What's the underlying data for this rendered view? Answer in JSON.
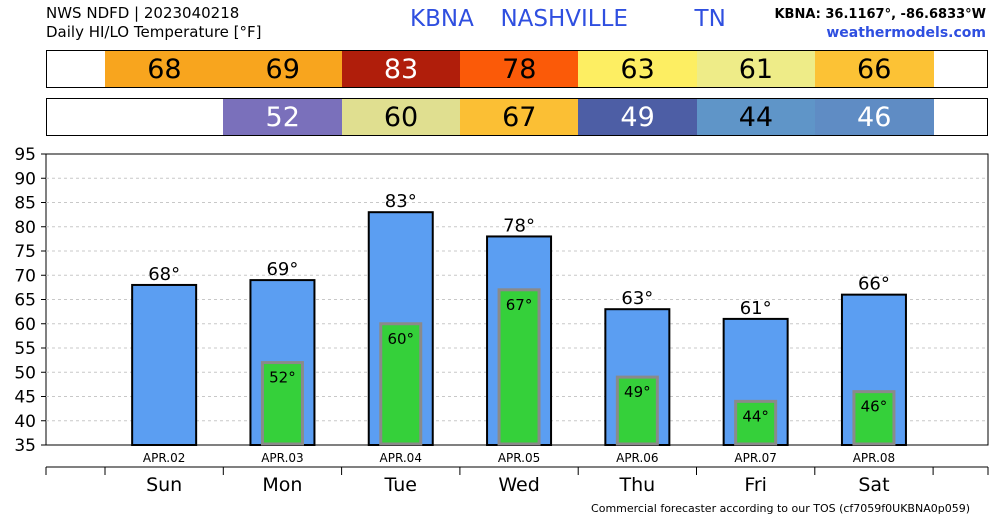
{
  "header": {
    "line1": "NWS NDFD | 2023040218",
    "line2": "Daily HI/LO Temperature [°F]",
    "station": "KBNA",
    "city": "NASHVILLE",
    "state": "TN",
    "coords": "KBNA: 36.1167°, -86.6833°W",
    "site": "weathermodels.com"
  },
  "high_strip": [
    {
      "value": "68",
      "bg": "#f8a51e",
      "fg": "#000000"
    },
    {
      "value": "69",
      "bg": "#f8a51e",
      "fg": "#000000"
    },
    {
      "value": "83",
      "bg": "#b01e0b",
      "fg": "#ffffff"
    },
    {
      "value": "78",
      "bg": "#fb5a08",
      "fg": "#000000"
    },
    {
      "value": "63",
      "bg": "#fdee62",
      "fg": "#000000"
    },
    {
      "value": "61",
      "bg": "#eeec88",
      "fg": "#000000"
    },
    {
      "value": "66",
      "bg": "#fcc235",
      "fg": "#000000"
    }
  ],
  "low_strip": [
    {
      "value": "52",
      "bg": "#7a70bb",
      "fg": "#ffffff"
    },
    {
      "value": "60",
      "bg": "#e0df90",
      "fg": "#000000"
    },
    {
      "value": "67",
      "bg": "#fbbf34",
      "fg": "#000000"
    },
    {
      "value": "49",
      "bg": "#4d5ea5",
      "fg": "#ffffff"
    },
    {
      "value": "44",
      "bg": "#5f95c8",
      "fg": "#000000"
    },
    {
      "value": "46",
      "bg": "#5f8cc4",
      "fg": "#ffffff"
    }
  ],
  "chart_data": {
    "type": "bar",
    "categories": [
      "Sun",
      "Mon",
      "Tue",
      "Wed",
      "Thu",
      "Fri",
      "Sat"
    ],
    "dates": [
      "APR.02",
      "APR.03",
      "APR.04",
      "APR.05",
      "APR.06",
      "APR.07",
      "APR.08"
    ],
    "series": [
      {
        "values": [
          68,
          69,
          83,
          78,
          63,
          61,
          66
        ],
        "color": "#5b9ef2"
      },
      {
        "values": [
          null,
          52,
          60,
          67,
          49,
          44,
          46
        ],
        "color": "#35d03a"
      }
    ],
    "high_labels": [
      "68°",
      "69°",
      "83°",
      "78°",
      "63°",
      "61°",
      "66°"
    ],
    "low_labels": [
      "",
      "52°",
      "60°",
      "67°",
      "49°",
      "44°",
      "46°"
    ],
    "ylim": [
      35,
      95
    ],
    "yticks": [
      35,
      40,
      45,
      50,
      55,
      60,
      65,
      70,
      75,
      80,
      85,
      90,
      95
    ],
    "grid": true
  },
  "footer": "Commercial forecaster according to our TOS (cf7059f0UKBNA0p059)"
}
